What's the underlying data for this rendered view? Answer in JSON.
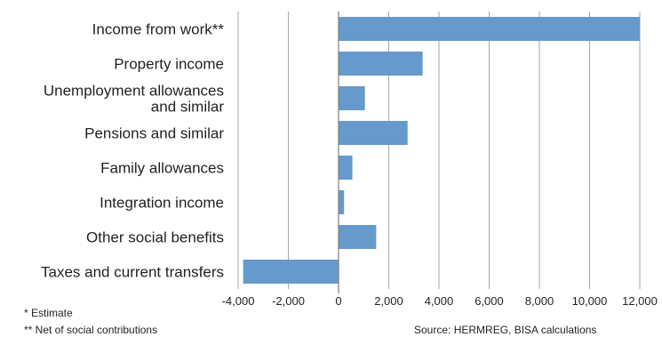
{
  "chart_data": {
    "type": "bar",
    "orientation": "horizontal",
    "categories": [
      "Income from work**",
      "Property income",
      "Unemployment allowances and similar",
      "Pensions and similar",
      "Family allowances",
      "Integration income",
      "Other social benefits",
      "Taxes and current transfers"
    ],
    "category_lines": [
      [
        "Income from work**"
      ],
      [
        "Property income"
      ],
      [
        "Unemployment allowances",
        "and similar"
      ],
      [
        "Pensions and similar"
      ],
      [
        "Family allowances"
      ],
      [
        "Integration income"
      ],
      [
        "Other social benefits"
      ],
      [
        "Taxes and current transfers"
      ]
    ],
    "values": [
      12000,
      3350,
      1050,
      2750,
      550,
      220,
      1500,
      -3800
    ],
    "xlim": [
      -4000,
      12000
    ],
    "xticks": [
      -4000,
      -2000,
      0,
      2000,
      4000,
      6000,
      8000,
      10000,
      12000
    ],
    "xtick_labels": [
      "-4,000",
      "-2,000",
      "0",
      "2,000",
      "4,000",
      "6,000",
      "8,000",
      "10,000",
      "12,000"
    ],
    "grid": true,
    "bar_color": "#6699cc",
    "gridline_color": "#a6a6a6"
  },
  "notes": {
    "estimate": "* Estimate",
    "net": "** Net of social contributions",
    "source": "Source: HERMREG, BISA calculations"
  }
}
